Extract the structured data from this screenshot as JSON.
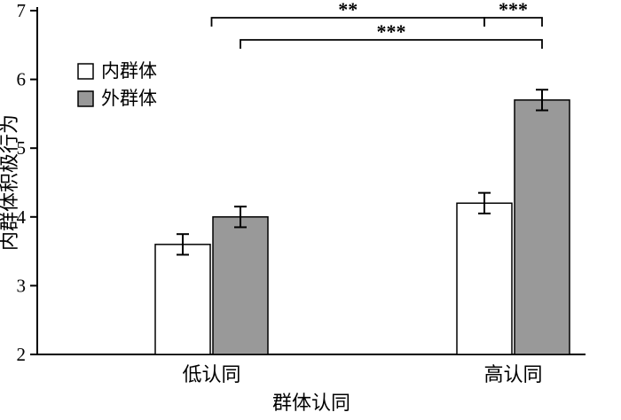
{
  "figure": {
    "title": ""
  },
  "chart_data": {
    "type": "bar",
    "title": "",
    "xlabel": "群体认同",
    "ylabel": "内群体积极行为",
    "categories": [
      "低认同",
      "高认同"
    ],
    "series": [
      {
        "name": "内群体",
        "fill": "#ffffff",
        "values": [
          3.6,
          4.2
        ],
        "errors": [
          0.15,
          0.15
        ]
      },
      {
        "name": "外群体",
        "fill": "#999999",
        "values": [
          4.0,
          5.7
        ],
        "errors": [
          0.15,
          0.15
        ]
      }
    ],
    "ylim": [
      2,
      7
    ],
    "yticks": [
      2,
      3,
      4,
      5,
      6,
      7
    ],
    "grid": false,
    "legend_position": "top-left",
    "bar_edge_color": "#000000",
    "axis_color": "#000000",
    "error_bar_color": "#000000",
    "significance": [
      {
        "label": "**",
        "from": {
          "cat": 0
        },
        "to": {
          "cat": 1,
          "series": 0
        },
        "level": 0
      },
      {
        "label": "***",
        "from": {
          "cat": 0,
          "series": 1
        },
        "to": {
          "cat": 1,
          "series": 1
        },
        "level": 1
      },
      {
        "label": "***",
        "from": {
          "cat": 1,
          "series": 0
        },
        "to": {
          "cat": 1,
          "series": 1
        },
        "level": 0
      }
    ]
  }
}
